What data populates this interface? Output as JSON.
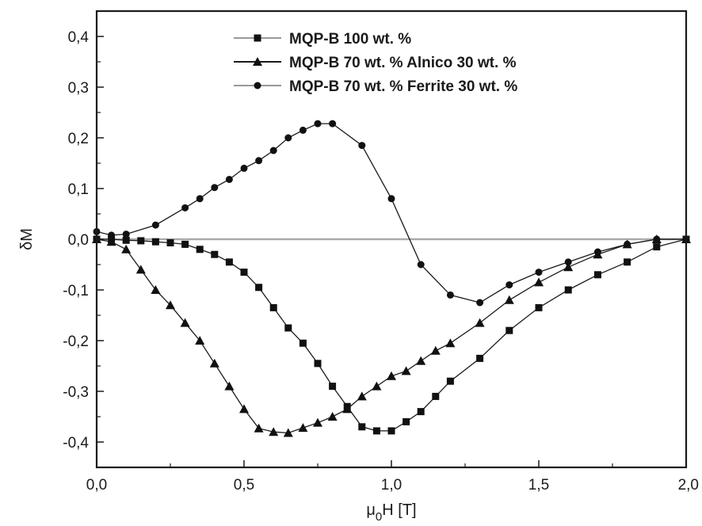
{
  "chart_data": {
    "type": "line",
    "xlabel_main": "μ",
    "xlabel_sub": "0",
    "xlabel_rest": "H [T]",
    "ylabel": "δM",
    "xlim": [
      0,
      2
    ],
    "ylim": [
      -0.45,
      0.45
    ],
    "x_ticks": [
      {
        "value": 0.0,
        "label": "0,0"
      },
      {
        "value": 0.5,
        "label": "0,5"
      },
      {
        "value": 1.0,
        "label": "1,0"
      },
      {
        "value": 1.5,
        "label": "1,5"
      },
      {
        "value": 2.0,
        "label": "2,0"
      }
    ],
    "y_ticks": [
      {
        "value": 0.4,
        "label": "0,4"
      },
      {
        "value": 0.3,
        "label": "0,3"
      },
      {
        "value": 0.2,
        "label": "0,2"
      },
      {
        "value": 0.1,
        "label": "0,1"
      },
      {
        "value": 0.0,
        "label": "0,0"
      },
      {
        "value": -0.1,
        "label": "-0,1"
      },
      {
        "value": -0.2,
        "label": "-0,2"
      },
      {
        "value": -0.3,
        "label": "-0,3"
      },
      {
        "value": -0.4,
        "label": "-0,4"
      }
    ],
    "reference_line": {
      "y": 0.0,
      "color": "#aaaaaa"
    },
    "legend_position": "top-right",
    "series": [
      {
        "name": "MQP-B 100 wt. %",
        "marker": "square",
        "line_color": "#1a1a1a",
        "legend_line_color": "#999999",
        "x": [
          0.0,
          0.05,
          0.1,
          0.15,
          0.2,
          0.25,
          0.3,
          0.35,
          0.4,
          0.45,
          0.5,
          0.55,
          0.6,
          0.65,
          0.7,
          0.75,
          0.8,
          0.85,
          0.9,
          0.95,
          1.0,
          1.05,
          1.1,
          1.15,
          1.2,
          1.3,
          1.4,
          1.5,
          1.6,
          1.7,
          1.8,
          1.9,
          2.0
        ],
        "y": [
          0.0,
          0.0,
          -0.002,
          -0.003,
          -0.005,
          -0.007,
          -0.01,
          -0.02,
          -0.03,
          -0.045,
          -0.065,
          -0.095,
          -0.135,
          -0.175,
          -0.205,
          -0.245,
          -0.29,
          -0.33,
          -0.37,
          -0.378,
          -0.378,
          -0.36,
          -0.34,
          -0.31,
          -0.28,
          -0.235,
          -0.18,
          -0.135,
          -0.1,
          -0.07,
          -0.045,
          -0.015,
          0.0
        ]
      },
      {
        "name": "MQP-B 70 wt. % Alnico 30 wt. %",
        "marker": "triangle",
        "line_color": "#1a1a1a",
        "legend_line_color": "#1a1a1a",
        "x": [
          0.0,
          0.05,
          0.1,
          0.15,
          0.2,
          0.25,
          0.3,
          0.35,
          0.4,
          0.45,
          0.5,
          0.55,
          0.6,
          0.65,
          0.7,
          0.75,
          0.8,
          0.85,
          0.9,
          0.95,
          1.0,
          1.05,
          1.1,
          1.15,
          1.2,
          1.3,
          1.4,
          1.5,
          1.6,
          1.7,
          1.8,
          1.9,
          2.0
        ],
        "y": [
          0.0,
          -0.005,
          -0.02,
          -0.06,
          -0.1,
          -0.13,
          -0.165,
          -0.2,
          -0.245,
          -0.29,
          -0.335,
          -0.373,
          -0.38,
          -0.382,
          -0.372,
          -0.362,
          -0.35,
          -0.335,
          -0.31,
          -0.29,
          -0.27,
          -0.26,
          -0.24,
          -0.22,
          -0.205,
          -0.165,
          -0.12,
          -0.085,
          -0.055,
          -0.03,
          -0.01,
          0.0,
          0.0
        ]
      },
      {
        "name": "MQP-B 70 wt. % Ferrite 30 wt. %",
        "marker": "circle",
        "line_color": "#1a1a1a",
        "legend_line_color": "#999999",
        "x": [
          0.0,
          0.05,
          0.1,
          0.2,
          0.3,
          0.35,
          0.4,
          0.45,
          0.5,
          0.55,
          0.6,
          0.65,
          0.7,
          0.75,
          0.8,
          0.9,
          1.0,
          1.1,
          1.2,
          1.3,
          1.4,
          1.5,
          1.6,
          1.7,
          1.8,
          1.9,
          2.0
        ],
        "y": [
          0.015,
          0.008,
          0.01,
          0.028,
          0.062,
          0.08,
          0.102,
          0.118,
          0.14,
          0.155,
          0.175,
          0.2,
          0.215,
          0.228,
          0.228,
          0.185,
          0.08,
          -0.05,
          -0.11,
          -0.125,
          -0.09,
          -0.065,
          -0.045,
          -0.025,
          -0.01,
          0.0,
          0.0
        ]
      }
    ]
  }
}
